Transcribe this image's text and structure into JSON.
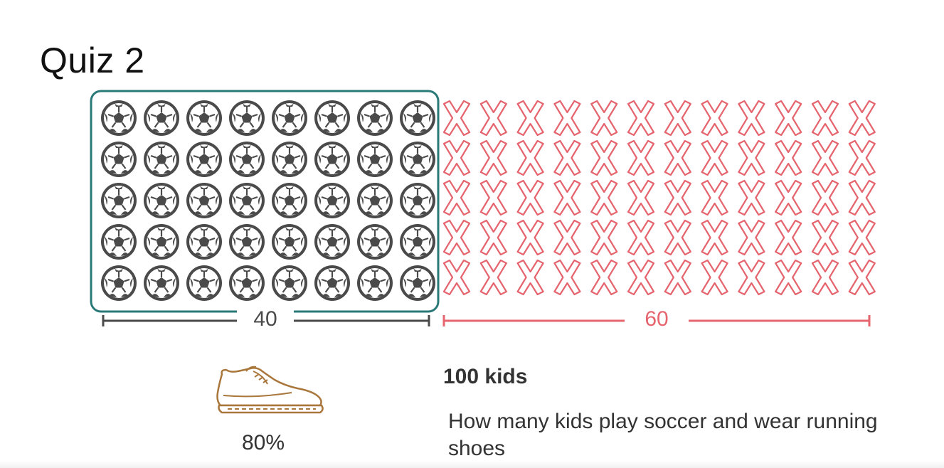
{
  "title": "Quiz 2",
  "soccer": {
    "count": 40,
    "rows": 5,
    "cols": 8,
    "label": "40",
    "color": "#4a4a4a",
    "frame_color": "#2b7a78"
  },
  "non_soccer": {
    "count": 60,
    "rows": 5,
    "cols": 12,
    "label": "60",
    "color": "#e5646e"
  },
  "shoe": {
    "percent_label": "80%",
    "color": "#a9773c"
  },
  "info": {
    "total": "100 kids",
    "question": "How many kids play soccer and wear running shoes"
  },
  "icons": {
    "soccer": "soccer-ball-icon",
    "cross": "cross-icon",
    "shoe": "running-shoe-icon"
  }
}
